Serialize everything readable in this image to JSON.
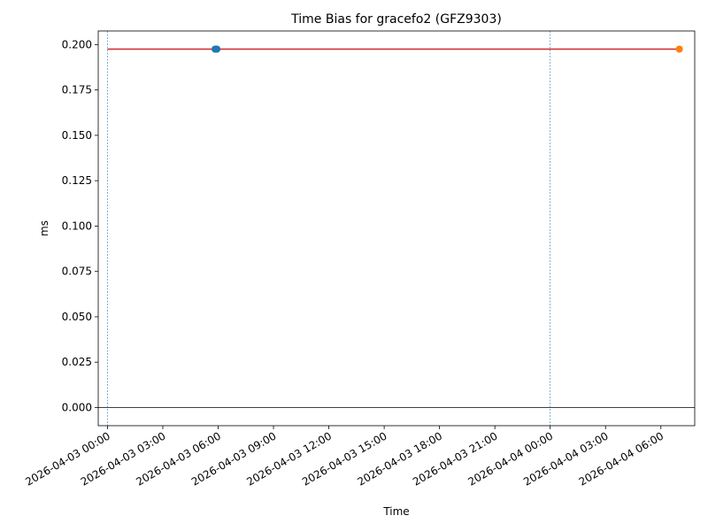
{
  "chart_data": {
    "type": "line",
    "title": "Time Bias for gracefo2 (GFZ9303)",
    "xlabel": "Time",
    "ylabel": "ms",
    "xlim": [
      "2026-04-02 23:30",
      "2026-04-04 07:50"
    ],
    "ylim": [
      -0.01,
      0.2075
    ],
    "x_ticks": [
      "2026-04-03 00:00",
      "2026-04-03 03:00",
      "2026-04-03 06:00",
      "2026-04-03 09:00",
      "2026-04-03 12:00",
      "2026-04-03 15:00",
      "2026-04-03 18:00",
      "2026-04-03 21:00",
      "2026-04-04 00:00",
      "2026-04-04 03:00",
      "2026-04-04 06:00"
    ],
    "y_ticks": [
      "0.000",
      "0.025",
      "0.050",
      "0.075",
      "0.100",
      "0.125",
      "0.150",
      "0.175",
      "0.200"
    ],
    "series": [
      {
        "kind": "line",
        "color": "#d62728",
        "x": [
          "2026-04-03 00:00",
          "2026-04-04 07:00"
        ],
        "y": [
          0.1975,
          0.1975
        ]
      },
      {
        "kind": "scatter",
        "color": "#1f77b4",
        "x": [
          "2026-04-03 05:50",
          "2026-04-03 05:52",
          "2026-04-03 05:54",
          "2026-04-03 05:56"
        ],
        "y": [
          0.1975,
          0.1975,
          0.1975,
          0.1975
        ]
      },
      {
        "kind": "scatter",
        "color": "#ff7f0e",
        "x": [
          "2026-04-04 07:00"
        ],
        "y": [
          0.1975
        ]
      }
    ],
    "vlines": [
      "2026-04-03 00:00",
      "2026-04-04 00:00"
    ],
    "vline_color": "#1f77b4",
    "hline_y": 0,
    "grid": false,
    "legend": false
  }
}
